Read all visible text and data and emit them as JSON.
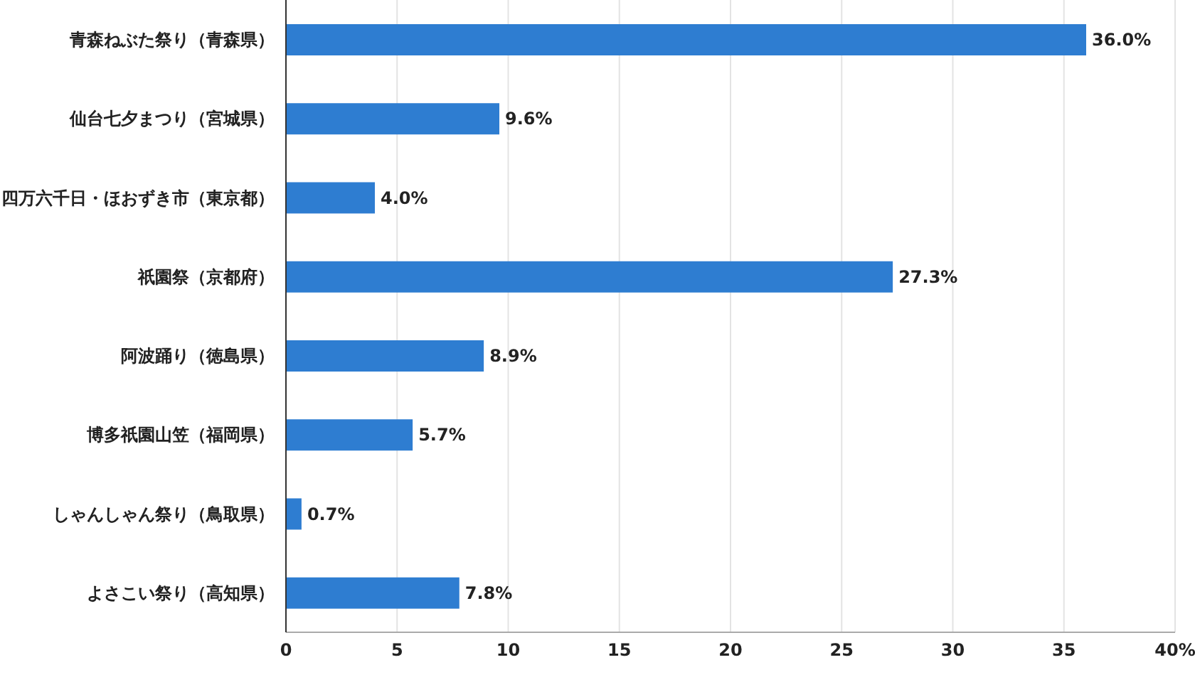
{
  "chart_data": {
    "type": "bar",
    "orientation": "horizontal",
    "categories": [
      "青森ねぶた祭り（青森県）",
      "仙台七夕まつり（宮城県）",
      "四万六千日・ほおずき市（東京都）",
      "祇園祭（京都府）",
      "阿波踊り（徳島県）",
      "博多祇園山笠（福岡県）",
      "しゃんしゃん祭り（鳥取県）",
      "よさこい祭り（高知県）"
    ],
    "values": [
      36.0,
      9.6,
      4.0,
      27.3,
      8.9,
      5.7,
      0.7,
      7.8
    ],
    "value_labels": [
      "36.0%",
      "9.6%",
      "4.0%",
      "27.3%",
      "8.9%",
      "5.7%",
      "0.7%",
      "7.8%"
    ],
    "color": "#2e7dd1",
    "xlim": [
      0,
      40
    ],
    "xticks": [
      0,
      5,
      10,
      15,
      20,
      25,
      30,
      35,
      {
        "value": 40,
        "label": "40%"
      }
    ],
    "grid": "x"
  }
}
